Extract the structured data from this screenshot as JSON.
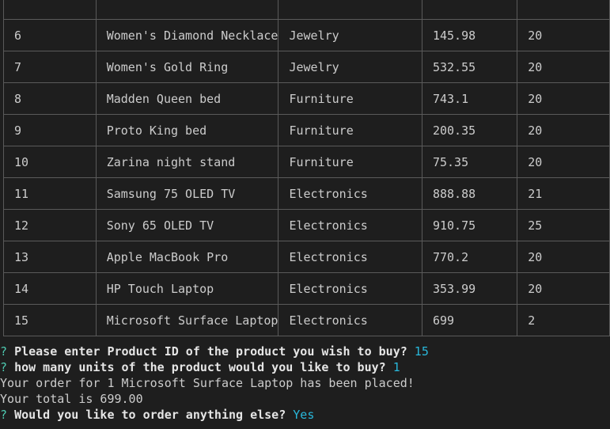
{
  "table": {
    "rows": [
      {
        "id": "",
        "name": "",
        "department": "",
        "price": "",
        "stock": ""
      },
      {
        "id": "6",
        "name": "Women's Diamond Necklace",
        "department": "Jewelry",
        "price": "145.98",
        "stock": "20"
      },
      {
        "id": "7",
        "name": "Women's Gold Ring",
        "department": "Jewelry",
        "price": "532.55",
        "stock": "20"
      },
      {
        "id": "8",
        "name": "Madden Queen bed",
        "department": "Furniture",
        "price": "743.1",
        "stock": "20"
      },
      {
        "id": "9",
        "name": "Proto King bed",
        "department": "Furniture",
        "price": "200.35",
        "stock": "20"
      },
      {
        "id": "10",
        "name": "Zarina night stand",
        "department": "Furniture",
        "price": "75.35",
        "stock": "20"
      },
      {
        "id": "11",
        "name": "Samsung 75 OLED TV",
        "department": "Electronics",
        "price": "888.88",
        "stock": "21"
      },
      {
        "id": "12",
        "name": "Sony 65 OLED TV",
        "department": "Electronics",
        "price": "910.75",
        "stock": "25"
      },
      {
        "id": "13",
        "name": "Apple MacBook Pro",
        "department": "Electronics",
        "price": "770.2",
        "stock": "20"
      },
      {
        "id": "14",
        "name": "HP Touch Laptop",
        "department": "Electronics",
        "price": "353.99",
        "stock": "20"
      },
      {
        "id": "15",
        "name": "Microsoft Surface Laptop",
        "department": "Electronics",
        "price": "699",
        "stock": "2"
      }
    ]
  },
  "prompts": {
    "q_mark": "?",
    "q1": "Please enter Product ID of the product you wish to buy?",
    "a1": "15",
    "q2": "how many units of the product would you like to buy?",
    "a2": "1",
    "order_msg": "Your order for 1 Microsoft Surface Laptop has been placed!",
    "total_msg": "Your total is 699.00",
    "q3": "Would you like to order anything else?",
    "a3": "Yes"
  },
  "colors": {
    "background": "#1e1e1e",
    "text": "#cccccc",
    "border": "#5a5a5a",
    "answer": "#29b8db",
    "question_mark": "#4ec9b0"
  }
}
